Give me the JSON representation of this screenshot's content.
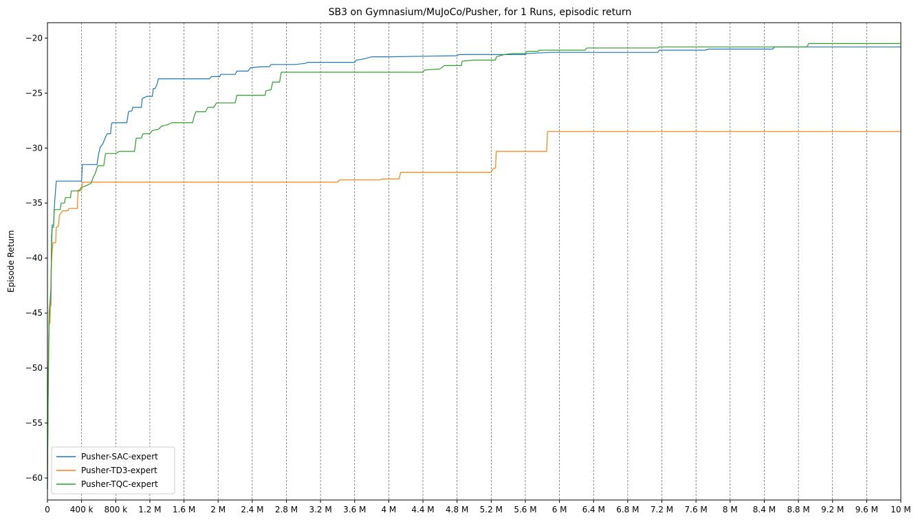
{
  "chart_data": {
    "type": "line",
    "title": "SB3 on Gymnasium/MuJoCo/Pusher, for 1 Runs, episodic return",
    "xlabel": "",
    "ylabel": "Episode Return",
    "xlim": [
      0,
      10000000
    ],
    "ylim": [
      -62,
      -18.6
    ],
    "grid": "vertical dashed lines at x ticks",
    "legend_position": "lower-left",
    "x_ticks": [
      0,
      400000,
      800000,
      1200000,
      1600000,
      2000000,
      2400000,
      2800000,
      3200000,
      3600000,
      4000000,
      4400000,
      4800000,
      5200000,
      5600000,
      6000000,
      6400000,
      6800000,
      7200000,
      7600000,
      8000000,
      8400000,
      8800000,
      9200000,
      9600000,
      10000000
    ],
    "x_tick_labels": [
      "0",
      "400 k",
      "800 k",
      "1.2 M",
      "1.6 M",
      "2 M",
      "2.4 M",
      "2.8 M",
      "3.2 M",
      "3.6 M",
      "4 M",
      "4.4 M",
      "4.8 M",
      "5.2 M",
      "5.6 M",
      "6 M",
      "6.4 M",
      "6.8 M",
      "7.2 M",
      "7.6 M",
      "8 M",
      "8.4 M",
      "8.8 M",
      "9.2 M",
      "9.6 M",
      "10 M"
    ],
    "y_ticks": [
      -60,
      -55,
      -50,
      -45,
      -40,
      -35,
      -30,
      -25,
      -20
    ],
    "y_tick_labels": [
      "−60",
      "−55",
      "−50",
      "−45",
      "−40",
      "−35",
      "−30",
      "−25",
      "−20"
    ],
    "series": [
      {
        "name": "Pusher-SAC-expert",
        "color": "#1f77b4",
        "points": [
          [
            0,
            -61
          ],
          [
            8000,
            -52
          ],
          [
            16000,
            -47
          ],
          [
            24000,
            -44.6
          ],
          [
            40000,
            -44.3
          ],
          [
            48000,
            -38
          ],
          [
            56000,
            -37
          ],
          [
            72000,
            -37
          ],
          [
            80000,
            -35.5
          ],
          [
            96000,
            -33.7
          ],
          [
            104000,
            -33
          ],
          [
            400000,
            -33
          ],
          [
            410000,
            -31.5
          ],
          [
            580000,
            -31.5
          ],
          [
            600000,
            -30.5
          ],
          [
            620000,
            -29.9
          ],
          [
            650000,
            -29.6
          ],
          [
            680000,
            -29
          ],
          [
            700000,
            -28.7
          ],
          [
            740000,
            -28.7
          ],
          [
            750000,
            -27.8
          ],
          [
            760000,
            -27.7
          ],
          [
            930000,
            -27.7
          ],
          [
            950000,
            -26.7
          ],
          [
            990000,
            -26.6
          ],
          [
            1000000,
            -26.3
          ],
          [
            1100000,
            -26.3
          ],
          [
            1110000,
            -25.5
          ],
          [
            1140000,
            -25.4
          ],
          [
            1160000,
            -25.3
          ],
          [
            1230000,
            -25.3
          ],
          [
            1240000,
            -24.6
          ],
          [
            1260000,
            -24.6
          ],
          [
            1280000,
            -24.3
          ],
          [
            1290000,
            -24.0
          ],
          [
            1300000,
            -23.7
          ],
          [
            1900000,
            -23.7
          ],
          [
            1920000,
            -23.5
          ],
          [
            2020000,
            -23.5
          ],
          [
            2030000,
            -23.3
          ],
          [
            2200000,
            -23.3
          ],
          [
            2220000,
            -23
          ],
          [
            2350000,
            -23
          ],
          [
            2380000,
            -22.7
          ],
          [
            2500000,
            -22.6
          ],
          [
            2600000,
            -22.6
          ],
          [
            2620000,
            -22.4
          ],
          [
            2900000,
            -22.4
          ],
          [
            3020000,
            -22.3
          ],
          [
            3050000,
            -22.2
          ],
          [
            3600000,
            -22.2
          ],
          [
            3620000,
            -22
          ],
          [
            3700000,
            -21.9
          ],
          [
            3750000,
            -21.8
          ],
          [
            3800000,
            -21.7
          ],
          [
            4000000,
            -21.7
          ],
          [
            4800000,
            -21.6
          ],
          [
            4820000,
            -21.5
          ],
          [
            5600000,
            -21.5
          ],
          [
            5620000,
            -21.4
          ],
          [
            5900000,
            -21.3
          ],
          [
            7150000,
            -21.3
          ],
          [
            7170000,
            -21.1
          ],
          [
            7700000,
            -21.1
          ],
          [
            7750000,
            -21.0
          ],
          [
            8500000,
            -21.0
          ],
          [
            8520000,
            -20.8
          ],
          [
            10000000,
            -20.8
          ]
        ]
      },
      {
        "name": "Pusher-TD3-expert",
        "color": "#ff7f0e",
        "points": [
          [
            0,
            -59.5
          ],
          [
            10000,
            -51
          ],
          [
            20000,
            -46
          ],
          [
            30000,
            -45.9
          ],
          [
            40000,
            -42.8
          ],
          [
            48000,
            -40.3
          ],
          [
            56000,
            -39.3
          ],
          [
            64000,
            -38.6
          ],
          [
            96000,
            -38.6
          ],
          [
            104000,
            -37.2
          ],
          [
            130000,
            -37.1
          ],
          [
            140000,
            -36.1
          ],
          [
            160000,
            -35.9
          ],
          [
            180000,
            -35.7
          ],
          [
            240000,
            -35.7
          ],
          [
            250000,
            -35.5
          ],
          [
            350000,
            -35.5
          ],
          [
            360000,
            -33.8
          ],
          [
            400000,
            -33.8
          ],
          [
            410000,
            -33.1
          ],
          [
            3400000,
            -33.1
          ],
          [
            3420000,
            -32.9
          ],
          [
            3900000,
            -32.9
          ],
          [
            3920000,
            -32.8
          ],
          [
            4120000,
            -32.8
          ],
          [
            4140000,
            -32.2
          ],
          [
            5200000,
            -32.2
          ],
          [
            5220000,
            -31.9
          ],
          [
            5250000,
            -31.8
          ],
          [
            5260000,
            -30.3
          ],
          [
            5850000,
            -30.3
          ],
          [
            5860000,
            -28.5
          ],
          [
            10000000,
            -28.5
          ]
        ]
      },
      {
        "name": "Pusher-TQC-expert",
        "color": "#2ca02c",
        "points": [
          [
            0,
            -61
          ],
          [
            10000,
            -51
          ],
          [
            20000,
            -45
          ],
          [
            32000,
            -43.7
          ],
          [
            40000,
            -42.9
          ],
          [
            48000,
            -39
          ],
          [
            56000,
            -37.2
          ],
          [
            72000,
            -37.2
          ],
          [
            80000,
            -35.6
          ],
          [
            150000,
            -35.6
          ],
          [
            160000,
            -35
          ],
          [
            200000,
            -35
          ],
          [
            210000,
            -34.5
          ],
          [
            270000,
            -34.5
          ],
          [
            280000,
            -33.9
          ],
          [
            380000,
            -33.9
          ],
          [
            390000,
            -33.6
          ],
          [
            460000,
            -33.4
          ],
          [
            510000,
            -33.2
          ],
          [
            540000,
            -32.6
          ],
          [
            560000,
            -32.3
          ],
          [
            590000,
            -31.6
          ],
          [
            660000,
            -31.6
          ],
          [
            680000,
            -30.5
          ],
          [
            800000,
            -30.5
          ],
          [
            840000,
            -30.3
          ],
          [
            1020000,
            -30.3
          ],
          [
            1040000,
            -29.1
          ],
          [
            1100000,
            -29.1
          ],
          [
            1120000,
            -28.7
          ],
          [
            1200000,
            -28.7
          ],
          [
            1230000,
            -28.4
          ],
          [
            1300000,
            -28.3
          ],
          [
            1340000,
            -28.0
          ],
          [
            1400000,
            -27.9
          ],
          [
            1460000,
            -27.7
          ],
          [
            1700000,
            -27.7
          ],
          [
            1720000,
            -27.1
          ],
          [
            1740000,
            -26.7
          ],
          [
            1850000,
            -26.7
          ],
          [
            1880000,
            -26.3
          ],
          [
            1950000,
            -26.3
          ],
          [
            1980000,
            -25.9
          ],
          [
            2200000,
            -25.9
          ],
          [
            2220000,
            -25.2
          ],
          [
            2550000,
            -25.2
          ],
          [
            2560000,
            -24.8
          ],
          [
            2620000,
            -24.7
          ],
          [
            2640000,
            -24.0
          ],
          [
            2720000,
            -24.0
          ],
          [
            2740000,
            -23.1
          ],
          [
            4400000,
            -23.1
          ],
          [
            4420000,
            -22.9
          ],
          [
            4600000,
            -22.8
          ],
          [
            4650000,
            -22.5
          ],
          [
            4850000,
            -22.5
          ],
          [
            4860000,
            -22.1
          ],
          [
            5000000,
            -22.0
          ],
          [
            5250000,
            -22.0
          ],
          [
            5260000,
            -21.7
          ],
          [
            5350000,
            -21.5
          ],
          [
            5450000,
            -21.4
          ],
          [
            5600000,
            -21.4
          ],
          [
            5620000,
            -21.2
          ],
          [
            5750000,
            -21.2
          ],
          [
            5760000,
            -21.1
          ],
          [
            6300000,
            -21.1
          ],
          [
            6320000,
            -20.9
          ],
          [
            7150000,
            -20.9
          ],
          [
            7170000,
            -20.8
          ],
          [
            8900000,
            -20.8
          ],
          [
            8920000,
            -20.5
          ],
          [
            10000000,
            -20.5
          ]
        ]
      }
    ]
  }
}
